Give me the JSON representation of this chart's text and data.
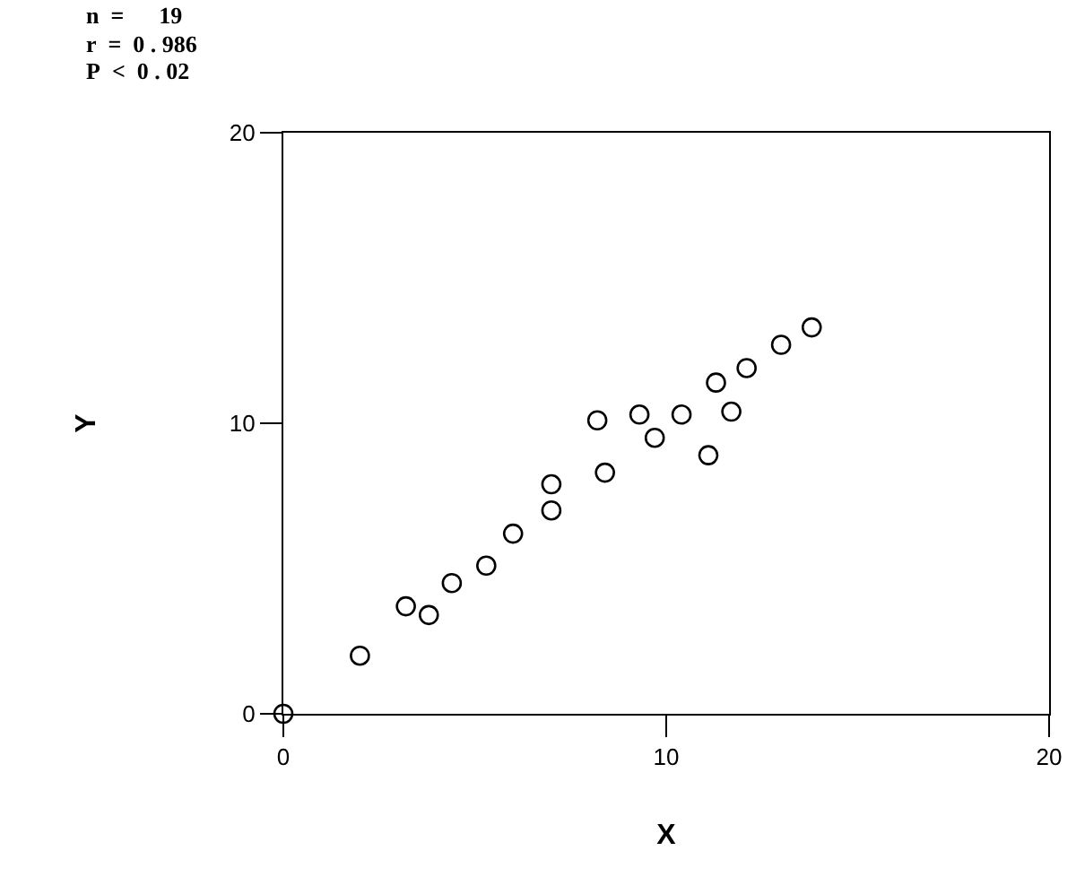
{
  "chart_data": {
    "type": "scatter",
    "xlabel": "X",
    "ylabel": "Y",
    "annotations": [
      "n  =      19",
      "r  =  0 . 986",
      "P  <  0 . 02"
    ],
    "x": [
      0,
      2.0,
      3.2,
      3.8,
      4.4,
      5.3,
      6.0,
      7.0,
      7.0,
      8.2,
      8.4,
      9.3,
      9.7,
      10.4,
      11.1,
      11.3,
      11.7,
      12.1,
      13.0,
      13.8
    ],
    "series": [
      {
        "color": "#000000",
        "values": [
          0,
          2.0,
          3.7,
          3.4,
          4.5,
          5.1,
          6.2,
          7.0,
          7.9,
          10.1,
          8.3,
          10.3,
          9.5,
          10.3,
          8.9,
          11.4,
          10.4,
          11.9,
          12.7,
          13.3
        ]
      }
    ],
    "xlim": [
      0,
      20
    ],
    "ylim": [
      0,
      20
    ],
    "xticks": [
      0,
      10,
      20
    ],
    "yticks": [
      0,
      10,
      20
    ],
    "marker": "circle"
  }
}
